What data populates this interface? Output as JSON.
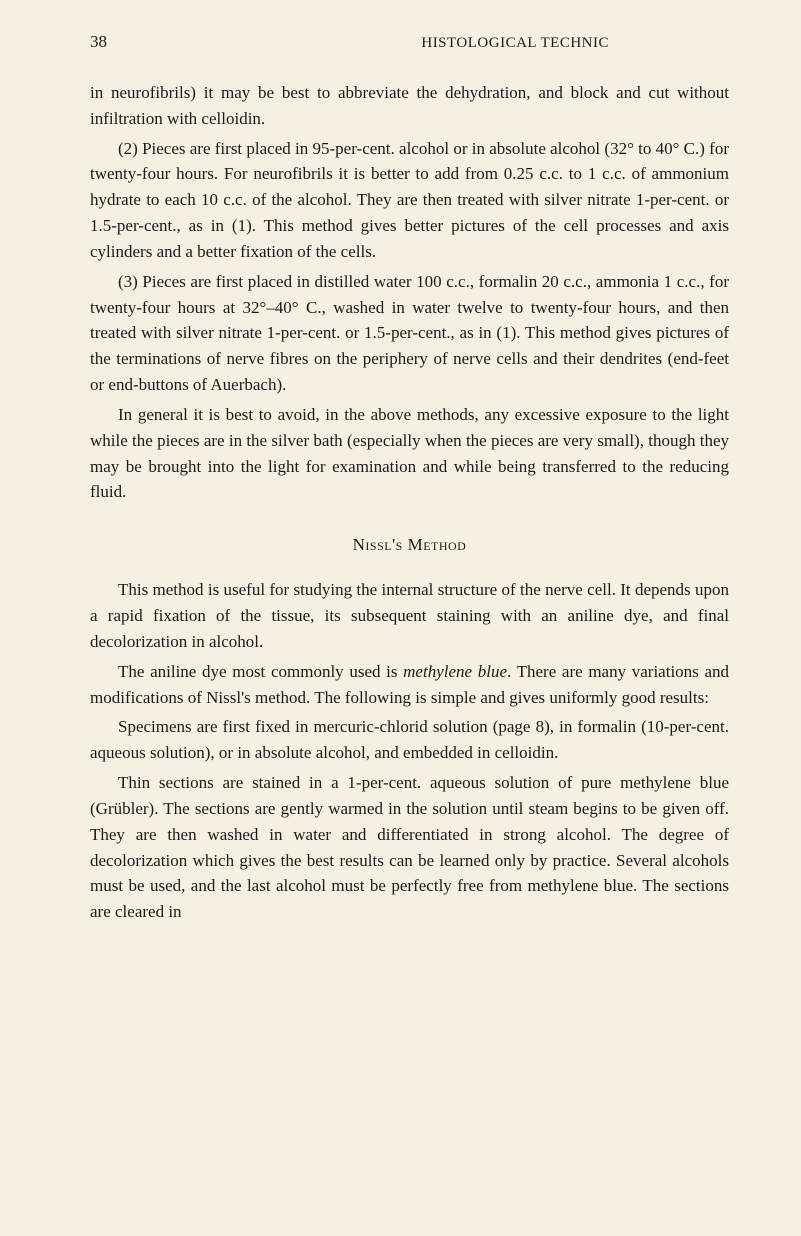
{
  "page": {
    "number": "38",
    "header": "HISTOLOGICAL TECHNIC",
    "background_color": "#f5f0e1",
    "text_color": "#1a1a1a",
    "font_family": "Georgia, 'Times New Roman', serif",
    "body_font_size": 17,
    "line_height": 1.52
  },
  "paragraphs": {
    "p1": "in neurofibrils) it may be best to abbreviate the dehydration, and block and cut without infiltration with celloidin.",
    "p2": "(2) Pieces are first placed in 95-per-cent. alcohol or in absolute alcohol (32° to 40° C.) for twenty-four hours. For neurofibrils it is better to add from 0.25 c.c. to 1 c.c. of ammonium hydrate to each 10 c.c. of the alcohol. They are then treated with silver nitrate 1-per-cent. or 1.5-per-cent., as in (1). This method gives better pictures of the cell processes and axis cylinders and a better fixation of the cells.",
    "p3": "(3) Pieces are first placed in distilled water 100 c.c., formalin 20 c.c., ammonia 1 c.c., for twenty-four hours at 32°–40° C., washed in water twelve to twenty-four hours, and then treated with silver nitrate 1-per-cent. or 1.5-per-cent., as in (1). This method gives pictures of the terminations of nerve fibres on the periphery of nerve cells and their dendrites (end-feet or end-buttons of Auerbach).",
    "p4": "In general it is best to avoid, in the above methods, any excessive exposure to the light while the pieces are in the silver bath (especially when the pieces are very small), though they may be brought into the light for examination and while being transferred to the reducing fluid.",
    "heading": "Nissl's Method",
    "p5": "This method is useful for studying the internal structure of the nerve cell. It depends upon a rapid fixation of the tissue, its subsequent staining with an aniline dye, and final decolorization in alcohol.",
    "p6_a": "The aniline dye most commonly used is ",
    "p6_italic": "methylene blue",
    "p6_b": ". There are many variations and modifications of Nissl's method. The following is simple and gives uniformly good results:",
    "p7": "Specimens are first fixed in mercuric-chlorid solution (page 8), in formalin (10-per-cent. aqueous solution), or in absolute alcohol, and embedded in celloidin.",
    "p8": "Thin sections are stained in a 1-per-cent. aqueous solution of pure methylene blue (Grübler). The sections are gently warmed in the solution until steam begins to be given off. They are then washed in water and differentiated in strong alcohol. The degree of decolorization which gives the best results can be learned only by practice. Several alcohols must be used, and the last alcohol must be perfectly free from methylene blue. The sections are cleared in"
  }
}
